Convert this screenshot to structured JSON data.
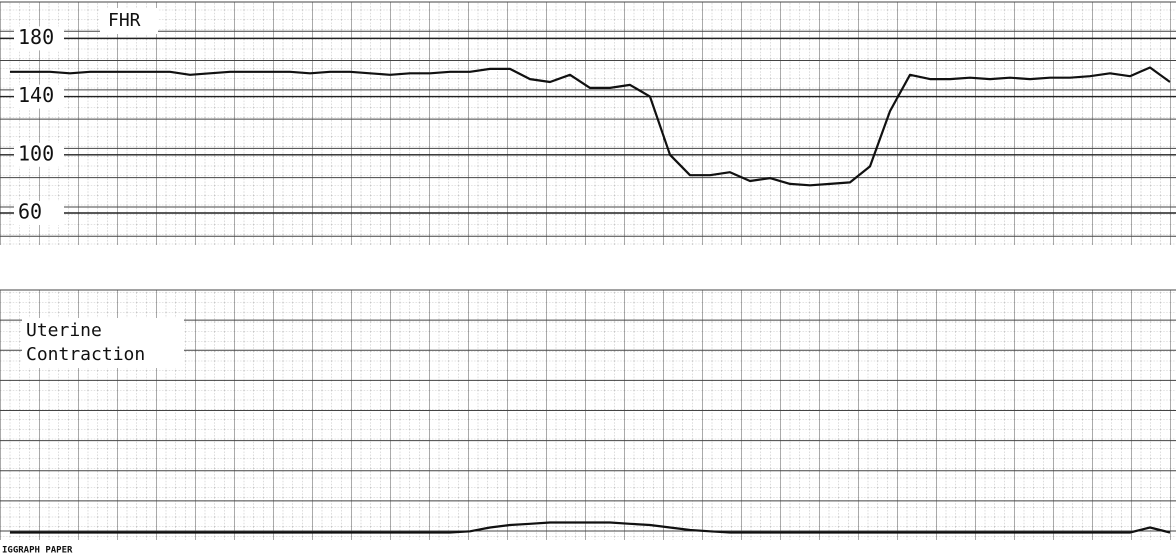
{
  "chart_data": [
    {
      "type": "line",
      "title": "FHR",
      "color": "#111111",
      "ylim": [
        38,
        205
      ],
      "yticks": [
        180,
        140,
        100,
        60
      ],
      "grid": true,
      "values": [
        157,
        157,
        157,
        156,
        157,
        157,
        157,
        157,
        157,
        155,
        156,
        157,
        157,
        157,
        157,
        156,
        157,
        157,
        156,
        155,
        156,
        156,
        157,
        157,
        159,
        159,
        152,
        150,
        155,
        146,
        146,
        148,
        140,
        100,
        86,
        86,
        88,
        82,
        84,
        80,
        79,
        80,
        81,
        92,
        130,
        155,
        152,
        152,
        153,
        152,
        153,
        152,
        153,
        153,
        154,
        156,
        154,
        160,
        150
      ]
    },
    {
      "type": "line",
      "title_lines": [
        "Uterine",
        "Contraction"
      ],
      "color": "#111111",
      "ylim": [
        0,
        100
      ],
      "grid": true,
      "values": [
        3,
        3,
        3,
        3,
        3,
        3,
        3,
        3,
        3,
        3,
        3,
        3,
        3,
        3,
        3,
        3,
        3,
        3,
        3,
        3,
        3,
        3,
        3,
        3.5,
        5,
        6,
        6.5,
        7,
        7,
        7,
        7,
        6.5,
        6,
        5,
        4,
        3.5,
        3,
        3,
        3,
        3,
        3,
        3,
        3,
        3,
        3,
        3,
        3,
        3,
        3,
        3,
        3,
        3,
        3,
        3,
        3,
        3,
        3,
        5,
        3
      ]
    }
  ],
  "footer": "IGGRAPH PAPER"
}
